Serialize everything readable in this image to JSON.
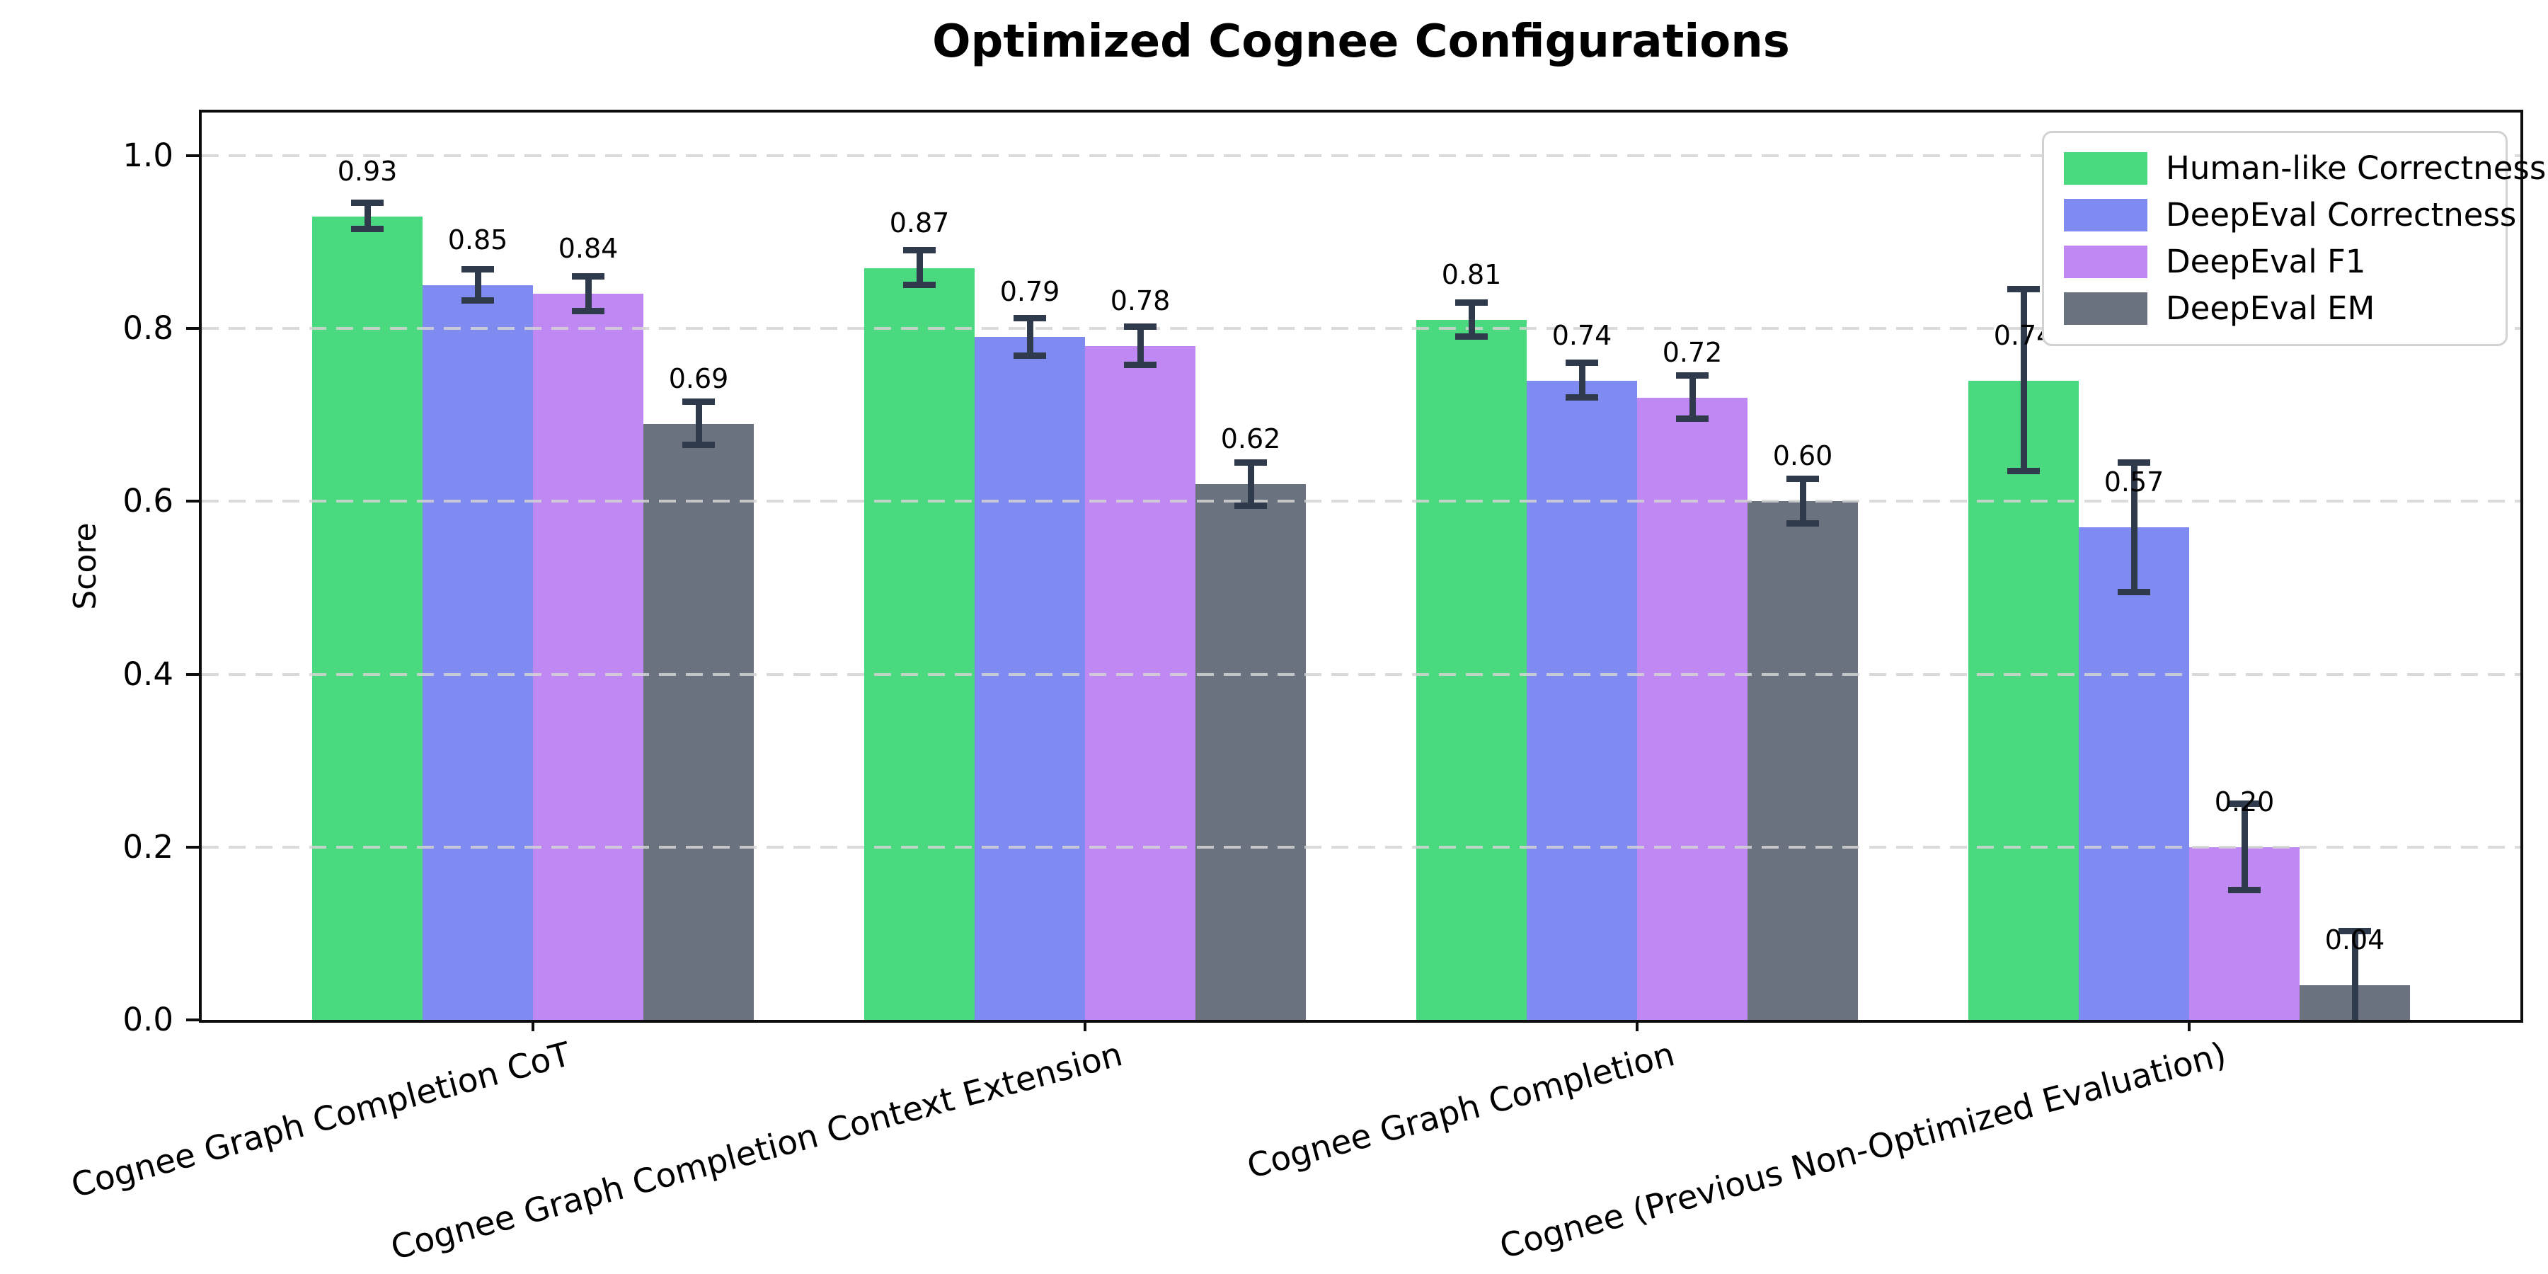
{
  "title": "Optimized Cognee Configurations",
  "chart_data": {
    "type": "bar",
    "title": "Optimized Cognee Configurations",
    "xlabel": "",
    "ylabel": "Score",
    "ylim": [
      0,
      1.05
    ],
    "yticks": [
      0.0,
      0.2,
      0.4,
      0.6,
      0.8,
      1.0
    ],
    "grid": "horizontal dashed, drawn above bars",
    "legend_position": "upper right",
    "error_bars": true,
    "error_bar_color": "#2f3a4c",
    "categories": [
      "Cognee Graph Completion CoT",
      "Cognee Graph Completion Context Extension",
      "Cognee Graph Completion",
      "Cognee (Previous Non-Optimized Evaluation)"
    ],
    "series": [
      {
        "name": "Human-like Correctness",
        "color": "#4bd97f",
        "values": [
          0.93,
          0.87,
          0.81,
          0.74
        ],
        "errors": [
          0.015,
          0.02,
          0.02,
          0.105
        ]
      },
      {
        "name": "DeepEval Correctness",
        "color": "#7f8bf0",
        "values": [
          0.85,
          0.79,
          0.74,
          0.57
        ],
        "errors": [
          0.018,
          0.022,
          0.02,
          0.075
        ]
      },
      {
        "name": "DeepEval F1",
        "color": "#bf88f2",
        "values": [
          0.84,
          0.78,
          0.72,
          0.2
        ],
        "errors": [
          0.02,
          0.022,
          0.025,
          0.05
        ]
      },
      {
        "name": "DeepEval EM",
        "color": "#6a7280",
        "values": [
          0.69,
          0.62,
          0.6,
          0.04
        ],
        "errors": [
          0.025,
          0.025,
          0.026,
          0.062
        ]
      }
    ]
  },
  "colors": {
    "background": "#ffffff",
    "spine": "#0d0d0d",
    "gridline": "#d4d4d4",
    "error_bar": "#2f3a4c",
    "text": "#000000"
  }
}
